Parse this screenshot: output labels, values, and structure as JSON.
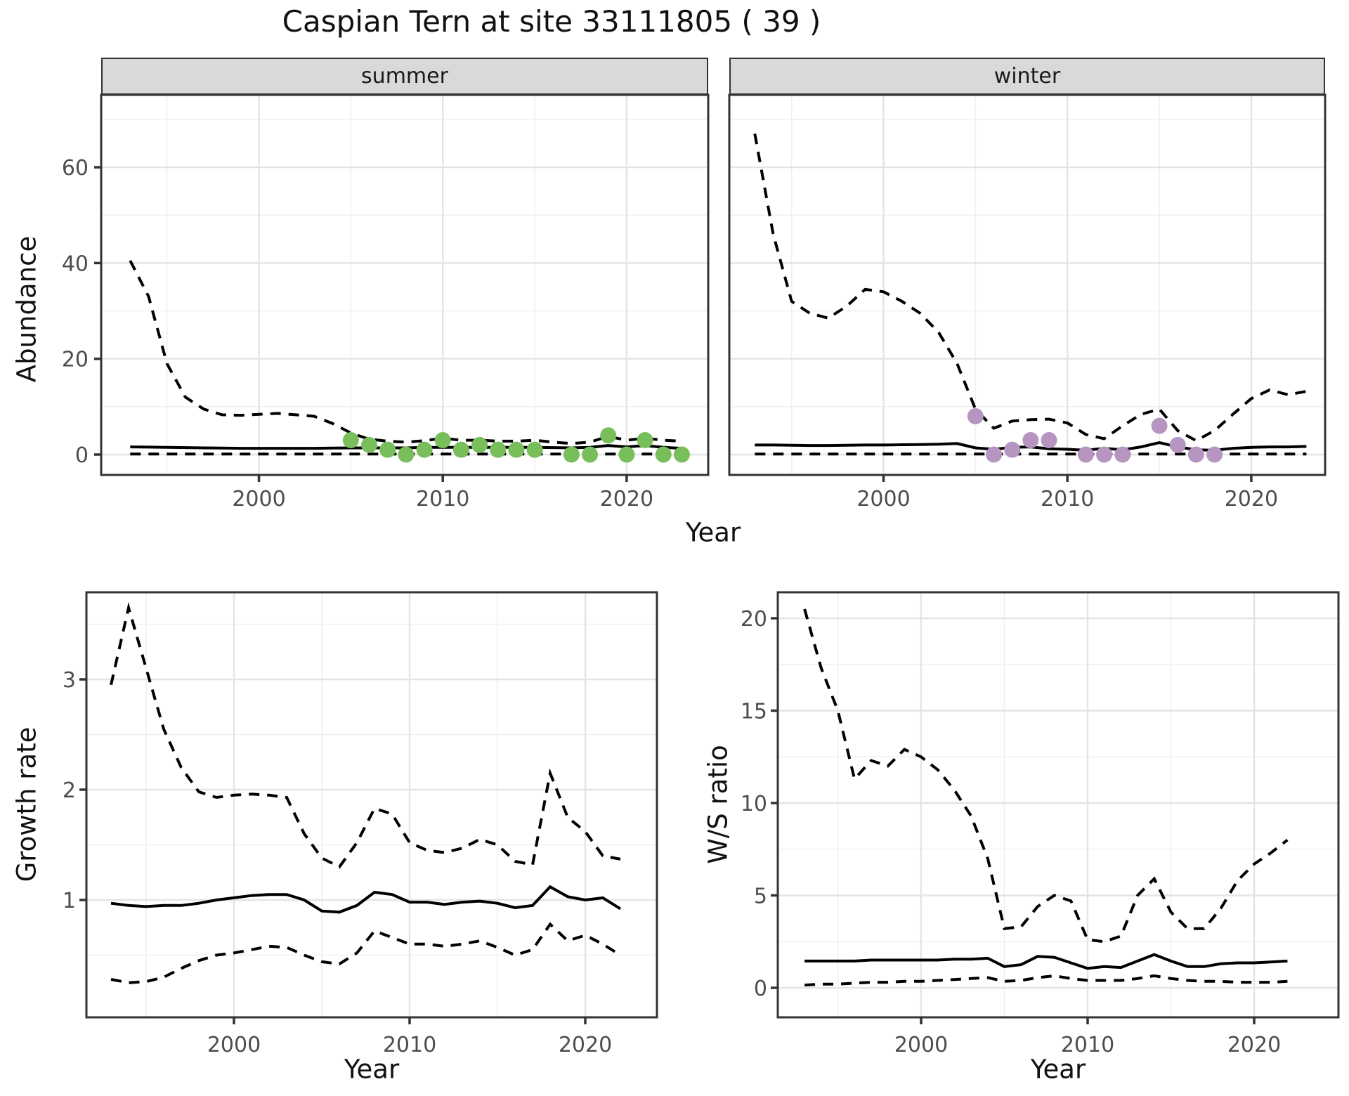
{
  "title": "Caspian Tern at site 33111805 ( 39 )",
  "facets": [
    "summer",
    "winter"
  ],
  "axis_titles": {
    "x_top": "Year",
    "x_bottom_left": "Year",
    "x_bottom_right": "Year",
    "y_abundance": "Abundance",
    "y_growth": "Growth rate",
    "y_ws": "W/S ratio"
  },
  "colors": {
    "summer_point": "#78BE5A",
    "winter_point": "#B695C0",
    "line": "#000000",
    "strip_bg": "#D9D9D9",
    "grid_major": "#E4E4E4",
    "grid_minor": "#F0F0F0",
    "tick_label": "#4D4D4D",
    "panel_border": "#333333"
  },
  "chart_data": [
    {
      "id": "abundance-summer",
      "type": "line",
      "facet": "summer",
      "xlabel": "Year",
      "ylabel": "Abundance",
      "x_ticks": [
        2000,
        2010,
        2020
      ],
      "y_ticks": [
        0,
        20,
        40,
        60
      ],
      "xlim": [
        1991.5,
        2024.5
      ],
      "ylim": [
        -4,
        75
      ],
      "grid": true,
      "legend": "none",
      "series": [
        {
          "name": "upper_ci",
          "style": "dashed",
          "x": [
            1993,
            1994,
            1995,
            1996,
            1997,
            1998,
            1999,
            2000,
            2001,
            2002,
            2003,
            2004,
            2005,
            2006,
            2007,
            2008,
            2009,
            2010,
            2011,
            2012,
            2013,
            2014,
            2015,
            2016,
            2017,
            2018,
            2019,
            2020,
            2021,
            2022,
            2023
          ],
          "y": [
            40.5,
            33,
            19,
            12,
            9.5,
            8.3,
            8.2,
            8.4,
            8.6,
            8.3,
            8.0,
            6.5,
            4.5,
            3.2,
            2.8,
            2.6,
            2.9,
            3.4,
            3.0,
            3.0,
            2.8,
            2.8,
            3.0,
            2.6,
            2.3,
            2.6,
            3.8,
            3.0,
            3.4,
            3.0,
            2.8
          ]
        },
        {
          "name": "estimate",
          "style": "solid",
          "x": [
            1993,
            1994,
            1995,
            1996,
            1997,
            1998,
            1999,
            2000,
            2001,
            2002,
            2003,
            2004,
            2005,
            2006,
            2007,
            2008,
            2009,
            2010,
            2011,
            2012,
            2013,
            2014,
            2015,
            2016,
            2017,
            2018,
            2019,
            2020,
            2021,
            2022,
            2023
          ],
          "y": [
            1.6,
            1.55,
            1.5,
            1.45,
            1.4,
            1.35,
            1.3,
            1.3,
            1.3,
            1.3,
            1.3,
            1.35,
            1.4,
            1.4,
            1.4,
            1.4,
            1.5,
            1.5,
            1.5,
            1.5,
            1.5,
            1.5,
            1.5,
            1.45,
            1.4,
            1.5,
            1.9,
            1.6,
            1.9,
            1.5,
            1.3
          ]
        },
        {
          "name": "lower_ci",
          "style": "dashed",
          "x": [
            1993,
            1994,
            1995,
            1996,
            1997,
            1998,
            1999,
            2000,
            2001,
            2002,
            2003,
            2004,
            2005,
            2006,
            2007,
            2008,
            2009,
            2010,
            2011,
            2012,
            2013,
            2014,
            2015,
            2016,
            2017,
            2018,
            2019,
            2020,
            2021,
            2022,
            2023
          ],
          "y": [
            0.1,
            0.1,
            0.1,
            0.1,
            0.1,
            0.1,
            0.1,
            0.1,
            0.1,
            0.1,
            0.1,
            0.1,
            0.1,
            0.1,
            0.1,
            0.1,
            0.1,
            0.1,
            0.1,
            0.1,
            0.1,
            0.1,
            0.1,
            0.1,
            0.1,
            0.1,
            0.1,
            0.1,
            0.1,
            0.1,
            0.1
          ]
        },
        {
          "name": "observed_counts",
          "style": "points",
          "color": "#78BE5A",
          "x": [
            2005,
            2006,
            2007,
            2008,
            2009,
            2010,
            2011,
            2012,
            2013,
            2014,
            2015,
            2017,
            2018,
            2019,
            2020,
            2021,
            2022,
            2023
          ],
          "y": [
            3,
            2,
            1,
            0,
            1,
            3,
            1,
            2,
            1,
            1,
            1,
            0,
            0,
            4,
            0,
            3,
            0,
            0
          ]
        }
      ]
    },
    {
      "id": "abundance-winter",
      "type": "line",
      "facet": "winter",
      "xlabel": "Year",
      "ylabel": "Abundance",
      "x_ticks": [
        2000,
        2010,
        2020
      ],
      "y_ticks": [
        0,
        20,
        40,
        60
      ],
      "xlim": [
        1991.5,
        2024.5
      ],
      "ylim": [
        -4,
        75
      ],
      "grid": true,
      "legend": "none",
      "series": [
        {
          "name": "upper_ci",
          "style": "dashed",
          "x": [
            1993,
            1994,
            1995,
            1996,
            1997,
            1998,
            1999,
            2000,
            2001,
            2002,
            2003,
            2004,
            2005,
            2006,
            2007,
            2008,
            2009,
            2010,
            2011,
            2012,
            2013,
            2014,
            2015,
            2016,
            2017,
            2018,
            2019,
            2020,
            2021,
            2022,
            2023
          ],
          "y": [
            67,
            46,
            32,
            29.5,
            28.5,
            31,
            34.5,
            34,
            32,
            29.5,
            25.5,
            19,
            9.5,
            5.5,
            7,
            7.3,
            7.4,
            6.6,
            4.2,
            3.3,
            6,
            8.4,
            9.5,
            5,
            2.9,
            5,
            8.4,
            11.7,
            13.5,
            12.5,
            13.2
          ]
        },
        {
          "name": "estimate",
          "style": "solid",
          "x": [
            1993,
            1994,
            1995,
            1996,
            1997,
            1998,
            1999,
            2000,
            2001,
            2002,
            2003,
            2004,
            2005,
            2006,
            2007,
            2008,
            2009,
            2010,
            2011,
            2012,
            2013,
            2014,
            2015,
            2016,
            2017,
            2018,
            2019,
            2020,
            2021,
            2022,
            2023
          ],
          "y": [
            2.0,
            2.0,
            1.95,
            1.9,
            1.9,
            1.95,
            2.0,
            2.0,
            2.05,
            2.1,
            2.15,
            2.3,
            1.4,
            1.1,
            1.5,
            1.6,
            1.2,
            1.1,
            0.9,
            1.3,
            1.0,
            1.6,
            2.5,
            1.6,
            1.0,
            0.9,
            1.3,
            1.5,
            1.6,
            1.6,
            1.7
          ]
        },
        {
          "name": "lower_ci",
          "style": "dashed",
          "x": [
            1993,
            1994,
            1995,
            1996,
            1997,
            1998,
            1999,
            2000,
            2001,
            2002,
            2003,
            2004,
            2005,
            2006,
            2007,
            2008,
            2009,
            2010,
            2011,
            2012,
            2013,
            2014,
            2015,
            2016,
            2017,
            2018,
            2019,
            2020,
            2021,
            2022,
            2023
          ],
          "y": [
            0.1,
            0.1,
            0.1,
            0.1,
            0.1,
            0.1,
            0.1,
            0.1,
            0.1,
            0.1,
            0.1,
            0.1,
            0.1,
            0.1,
            0.1,
            0.1,
            0.1,
            0.1,
            0.1,
            0.1,
            0.1,
            0.1,
            0.1,
            0.1,
            0.1,
            0.1,
            0.1,
            0.1,
            0.1,
            0.1,
            0.1
          ]
        },
        {
          "name": "observed_counts",
          "style": "points",
          "color": "#B695C0",
          "x": [
            2005,
            2006,
            2007,
            2008,
            2009,
            2011,
            2012,
            2013,
            2015,
            2016,
            2017,
            2018
          ],
          "y": [
            8,
            0,
            1,
            3,
            3,
            0,
            0,
            0,
            6,
            2,
            0,
            0
          ]
        }
      ]
    },
    {
      "id": "growth-rate",
      "type": "line",
      "facet": null,
      "xlabel": "Year",
      "ylabel": "Growth rate",
      "x_ticks": [
        2000,
        2010,
        2020
      ],
      "y_ticks": [
        1,
        2,
        3
      ],
      "xlim": [
        1991.6,
        2024.1
      ],
      "ylim": [
        0.1,
        3.8
      ],
      "grid": true,
      "legend": "none",
      "series": [
        {
          "name": "upper_ci",
          "style": "dashed",
          "x": [
            1993,
            1994,
            1995,
            1996,
            1997,
            1998,
            1999,
            2000,
            2001,
            2002,
            2003,
            2004,
            2005,
            2006,
            2007,
            2008,
            2009,
            2010,
            2011,
            2012,
            2013,
            2014,
            2015,
            2016,
            2017,
            2018,
            2019,
            2020,
            2021,
            2022
          ],
          "y": [
            2.95,
            3.65,
            3.1,
            2.55,
            2.2,
            1.98,
            1.93,
            1.95,
            1.96,
            1.95,
            1.93,
            1.6,
            1.38,
            1.3,
            1.52,
            1.83,
            1.78,
            1.52,
            1.45,
            1.43,
            1.47,
            1.55,
            1.5,
            1.35,
            1.32,
            2.15,
            1.75,
            1.62,
            1.4,
            1.37
          ]
        },
        {
          "name": "estimate",
          "style": "solid",
          "x": [
            1993,
            1994,
            1995,
            1996,
            1997,
            1998,
            1999,
            2000,
            2001,
            2002,
            2003,
            2004,
            2005,
            2006,
            2007,
            2008,
            2009,
            2010,
            2011,
            2012,
            2013,
            2014,
            2015,
            2016,
            2017,
            2018,
            2019,
            2020,
            2021,
            2022
          ],
          "y": [
            0.97,
            0.95,
            0.94,
            0.95,
            0.95,
            0.97,
            1.0,
            1.02,
            1.04,
            1.05,
            1.05,
            1.0,
            0.9,
            0.89,
            0.95,
            1.07,
            1.05,
            0.98,
            0.98,
            0.96,
            0.98,
            0.99,
            0.97,
            0.93,
            0.95,
            1.12,
            1.03,
            1.0,
            1.02,
            0.92
          ]
        },
        {
          "name": "lower_ci",
          "style": "dashed",
          "x": [
            1993,
            1994,
            1995,
            1996,
            1997,
            1998,
            1999,
            2000,
            2001,
            2002,
            2003,
            2004,
            2005,
            2006,
            2007,
            2008,
            2009,
            2010,
            2011,
            2012,
            2013,
            2014,
            2015,
            2016,
            2017,
            2018,
            2019,
            2020,
            2021,
            2022
          ],
          "y": [
            0.28,
            0.25,
            0.26,
            0.3,
            0.38,
            0.45,
            0.5,
            0.52,
            0.55,
            0.58,
            0.57,
            0.5,
            0.44,
            0.42,
            0.52,
            0.72,
            0.66,
            0.6,
            0.6,
            0.58,
            0.6,
            0.63,
            0.57,
            0.5,
            0.55,
            0.78,
            0.63,
            0.68,
            0.6,
            0.5
          ]
        }
      ]
    },
    {
      "id": "ws-ratio",
      "type": "line",
      "facet": null,
      "xlabel": "Year",
      "ylabel": "W/S ratio",
      "x_ticks": [
        2000,
        2010,
        2020
      ],
      "y_ticks": [
        0,
        5,
        10,
        15,
        20
      ],
      "xlim": [
        1991.4,
        2024.8
      ],
      "ylim": [
        -1.5,
        21.4
      ],
      "grid": true,
      "legend": "none",
      "series": [
        {
          "name": "upper_ci",
          "style": "dashed",
          "x": [
            1993,
            1994,
            1995,
            1996,
            1997,
            1998,
            1999,
            2000,
            2001,
            2002,
            2003,
            2004,
            2005,
            2006,
            2007,
            2008,
            2009,
            2010,
            2011,
            2012,
            2013,
            2014,
            2015,
            2016,
            2017,
            2018,
            2019,
            2020,
            2021,
            2022
          ],
          "y": [
            20.5,
            17.3,
            15.0,
            11.3,
            12.3,
            12.0,
            12.9,
            12.5,
            11.8,
            10.7,
            9.3,
            7.0,
            3.2,
            3.3,
            4.4,
            5.0,
            4.7,
            2.6,
            2.5,
            2.8,
            5.0,
            5.9,
            4.1,
            3.2,
            3.2,
            4.3,
            5.8,
            6.7,
            7.3,
            8.0
          ]
        },
        {
          "name": "estimate",
          "style": "solid",
          "x": [
            1993,
            1994,
            1995,
            1996,
            1997,
            1998,
            1999,
            2000,
            2001,
            2002,
            2003,
            2004,
            2005,
            2006,
            2007,
            2008,
            2009,
            2010,
            2011,
            2012,
            2013,
            2014,
            2015,
            2016,
            2017,
            2018,
            2019,
            2020,
            2021,
            2022
          ],
          "y": [
            1.45,
            1.45,
            1.45,
            1.45,
            1.5,
            1.5,
            1.5,
            1.5,
            1.5,
            1.55,
            1.55,
            1.6,
            1.15,
            1.25,
            1.7,
            1.65,
            1.35,
            1.05,
            1.15,
            1.1,
            1.45,
            1.8,
            1.45,
            1.15,
            1.15,
            1.3,
            1.35,
            1.35,
            1.4,
            1.45
          ]
        },
        {
          "name": "lower_ci",
          "style": "dashed",
          "x": [
            1993,
            1994,
            1995,
            1996,
            1997,
            1998,
            1999,
            2000,
            2001,
            2002,
            2003,
            2004,
            2005,
            2006,
            2007,
            2008,
            2009,
            2010,
            2011,
            2012,
            2013,
            2014,
            2015,
            2016,
            2017,
            2018,
            2019,
            2020,
            2021,
            2022
          ],
          "y": [
            0.15,
            0.2,
            0.2,
            0.25,
            0.3,
            0.3,
            0.35,
            0.35,
            0.4,
            0.45,
            0.5,
            0.55,
            0.35,
            0.4,
            0.55,
            0.65,
            0.5,
            0.4,
            0.4,
            0.4,
            0.5,
            0.65,
            0.5,
            0.4,
            0.35,
            0.35,
            0.3,
            0.3,
            0.3,
            0.35
          ]
        }
      ]
    }
  ]
}
